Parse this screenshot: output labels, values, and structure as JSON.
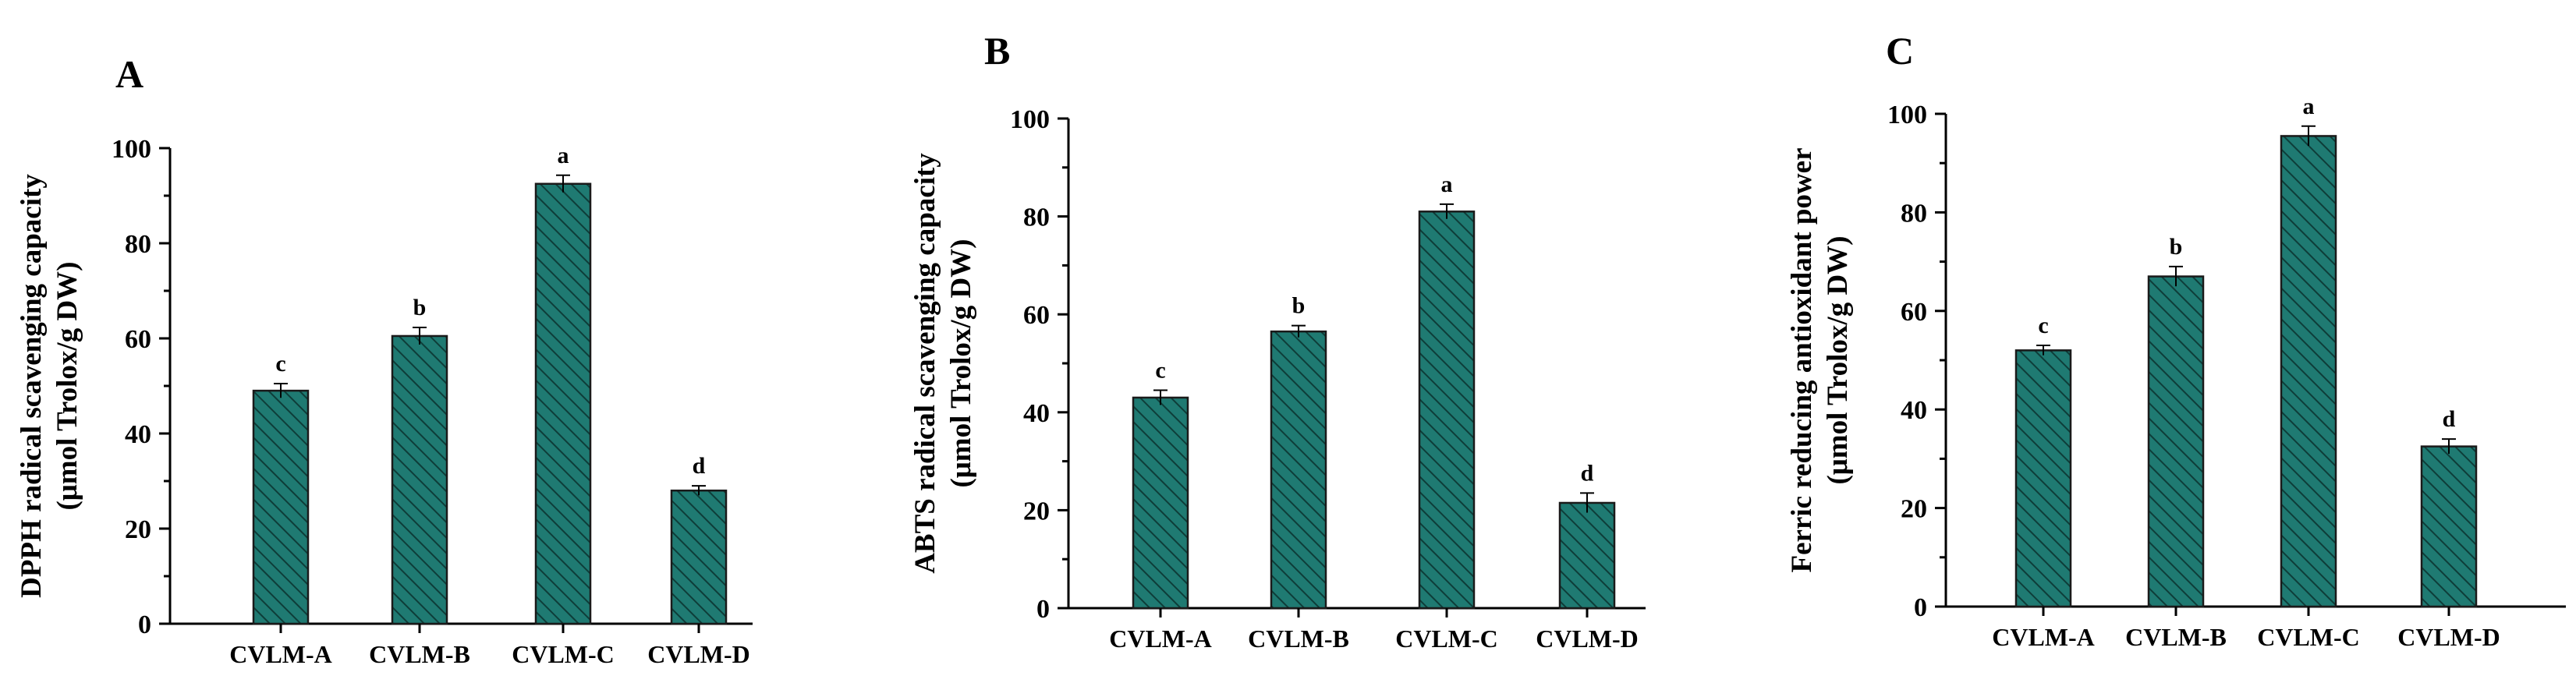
{
  "colors": {
    "bar_fill": "#1f7a72",
    "hatch": "#0e3d39"
  },
  "chart_data": [
    {
      "type": "bar",
      "panel": "A",
      "ylabel_line1": "DPPH  radical scavenging capacity",
      "ylabel_line2": "(μmol Trolox/g DW)",
      "categories": [
        "CVLM-A",
        "CVLM-B",
        "CVLM-C",
        "CVLM-D"
      ],
      "values": [
        49,
        60.5,
        92.5,
        28
      ],
      "errors": [
        1.5,
        1.8,
        1.8,
        1.0
      ],
      "significance": [
        "c",
        "b",
        "a",
        "d"
      ],
      "ylim": [
        0,
        100
      ],
      "yticks": [
        0,
        20,
        40,
        60,
        80,
        100
      ],
      "grid": false
    },
    {
      "type": "bar",
      "panel": "B",
      "ylabel_line1": "ABTS radical scavenging capacity",
      "ylabel_line2": "(μmol Trolox/g DW)",
      "categories": [
        "CVLM-A",
        "CVLM-B",
        "CVLM-C",
        "CVLM-D"
      ],
      "values": [
        43,
        56.5,
        81,
        21.5
      ],
      "errors": [
        1.5,
        1.2,
        1.5,
        2.0
      ],
      "significance": [
        "c",
        "b",
        "a",
        "d"
      ],
      "ylim": [
        0,
        100
      ],
      "yticks": [
        0,
        20,
        40,
        60,
        80,
        100
      ],
      "grid": false
    },
    {
      "type": "bar",
      "panel": "C",
      "ylabel_line1": "Ferric reducing antioxidant power",
      "ylabel_line2": "(μmol Trolox/g DW)",
      "categories": [
        "CVLM-A",
        "CVLM-B",
        "CVLM-C",
        "CVLM-D"
      ],
      "values": [
        52,
        67,
        95.5,
        32.5
      ],
      "errors": [
        1.0,
        2.0,
        2.0,
        1.5
      ],
      "significance": [
        "c",
        "b",
        "a",
        "d"
      ],
      "ylim": [
        0,
        100
      ],
      "yticks": [
        0,
        20,
        40,
        60,
        80,
        100
      ],
      "grid": false
    }
  ]
}
